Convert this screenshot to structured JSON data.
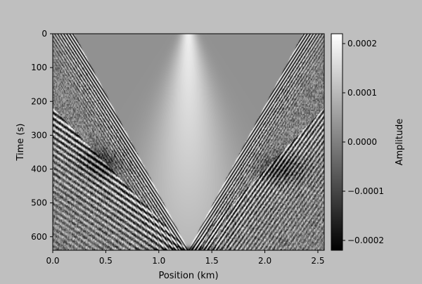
{
  "chart_data": {
    "type": "heatmap",
    "title": "",
    "xlabel": "Position (km)",
    "ylabel": "Time (s)",
    "xlim": [
      0.0,
      2.56
    ],
    "ylim": [
      640,
      0
    ],
    "x_ticks": [
      0.0,
      0.5,
      1.0,
      1.5,
      2.0,
      2.5
    ],
    "x_tick_labels": [
      "0.0",
      "0.5",
      "1.0",
      "1.5",
      "2.0",
      "2.5"
    ],
    "y_ticks": [
      0,
      100,
      200,
      300,
      400,
      500,
      600
    ],
    "y_tick_labels": [
      "0",
      "100",
      "200",
      "300",
      "400",
      "500",
      "600"
    ],
    "colormap": "gray",
    "colorbar": {
      "label": "Amplitude",
      "range": [
        -0.00022,
        0.00022
      ],
      "ticks": [
        0.0002,
        0.0001,
        0.0,
        -0.0001,
        -0.0002
      ],
      "tick_labels": [
        "0.0002",
        "0.0001",
        "0.0000",
        "−0.0001",
        "−0.0002"
      ]
    },
    "features": {
      "direct_wave_apex_x": 1.28,
      "direct_wave_edges_at_t0": [
        0.2,
        2.4
      ],
      "reflection_first_arrival_time_at_edges": 220,
      "reflection_apex_time": 640,
      "hyperbolic_diffraction_times": [
        380,
        400
      ]
    }
  },
  "colors": {
    "figure_bg": "#bfbfbf",
    "zero_amplitude": "#808080",
    "max_amplitude": "#ffffff",
    "min_amplitude": "#000000"
  }
}
